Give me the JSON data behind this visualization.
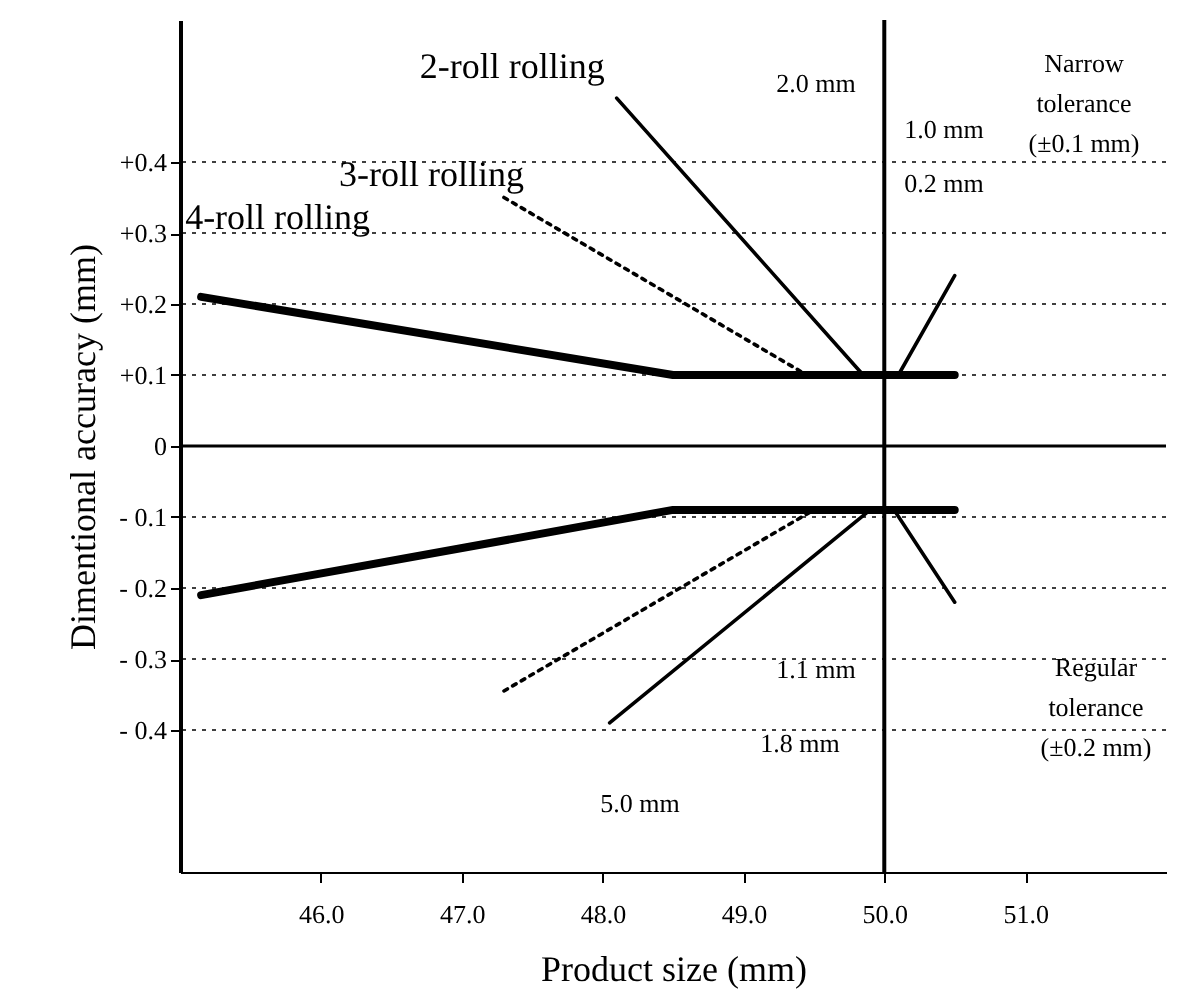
{
  "chart_data": {
    "type": "line",
    "xlabel": "Product size (mm)",
    "ylabel": "Dimentional accuracy (mm)",
    "xlim": [
      45,
      52
    ],
    "ylim": [
      -0.6,
      0.6
    ],
    "xticks": [
      {
        "value": 46,
        "label": "46.0"
      },
      {
        "value": 47,
        "label": "47.0"
      },
      {
        "value": 48,
        "label": "48.0"
      },
      {
        "value": 49,
        "label": "49.0"
      },
      {
        "value": 50,
        "label": "50.0"
      },
      {
        "value": 51,
        "label": "51.0"
      }
    ],
    "yticks": [
      {
        "value": -0.4,
        "label": "- 0.4"
      },
      {
        "value": -0.3,
        "label": "- 0.3"
      },
      {
        "value": -0.2,
        "label": "- 0.2"
      },
      {
        "value": -0.1,
        "label": "- 0.1"
      },
      0,
      {
        "value": 0.1,
        "label": "+0.1"
      },
      {
        "value": 0.2,
        "label": "+0.2"
      },
      {
        "value": 0.3,
        "label": "+0.3"
      },
      {
        "value": 0.4,
        "label": "+0.4"
      }
    ],
    "grid": "y",
    "marker": "none",
    "series": [
      {
        "name": "4-roll rolling",
        "color": "#000000",
        "line_style": "solid",
        "x": [
          45.15,
          48.5,
          50.5
        ],
        "values": [
          0.21,
          0.1,
          0.1
        ]
      },
      {
        "color": "#000000",
        "line_style": "solid",
        "x": [
          45.15,
          48.5,
          50.5
        ],
        "values": [
          -0.21,
          -0.09,
          -0.09
        ]
      },
      {
        "name": "3-roll rolling",
        "color": "#000000",
        "line_style": "dotted",
        "x": [
          47.3,
          49.45
        ],
        "values": [
          0.35,
          0.1
        ]
      },
      {
        "color": "#000000",
        "line_style": "dotted",
        "x": [
          47.3,
          49.5
        ],
        "values": [
          -0.345,
          -0.09
        ]
      },
      {
        "name": "2-roll rolling",
        "color": "#000000",
        "line_style": "solid",
        "x": [
          48.1,
          49.85,
          50.1,
          50.5
        ],
        "values": [
          0.49,
          0.1,
          0.1,
          0.24
        ]
      },
      {
        "color": "#000000",
        "line_style": "solid",
        "x": [
          48.05,
          49.9,
          50.07,
          50.5
        ],
        "values": [
          -0.39,
          -0.09,
          -0.09,
          -0.22
        ]
      }
    ],
    "ref_lines": [
      {
        "axis": "x",
        "value": 50,
        "line_style": "solid"
      }
    ],
    "annotations": [
      "2.0 mm",
      "1.0 mm",
      "0.2 mm",
      "1.1 mm",
      "1.8 mm",
      "5.0 mm",
      "Narrow tolerance (±0.1 mm)",
      "Regular tolerance (±0.2 mm)"
    ]
  }
}
